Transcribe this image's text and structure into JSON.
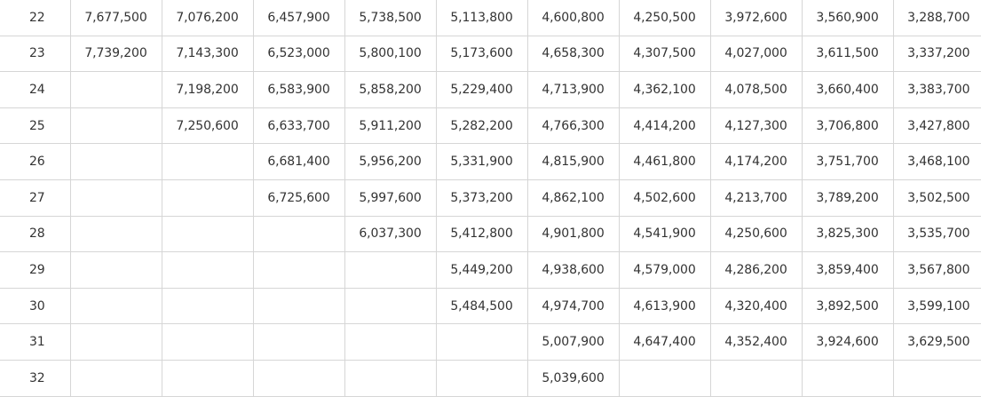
{
  "rows": [
    {
      "age": "22",
      "values": [
        "7,677,500",
        "7,076,200",
        "6,457,900",
        "5,738,500",
        "5,113,800",
        "4,600,800",
        "4,250,500",
        "3,972,600",
        "3,560,900",
        "3,288,700"
      ]
    },
    {
      "age": "23",
      "values": [
        "7,739,200",
        "7,143,300",
        "6,523,000",
        "5,800,100",
        "5,173,600",
        "4,658,300",
        "4,307,500",
        "4,027,000",
        "3,611,500",
        "3,337,200"
      ]
    },
    {
      "age": "24",
      "values": [
        "",
        "7,198,200",
        "6,583,900",
        "5,858,200",
        "5,229,400",
        "4,713,900",
        "4,362,100",
        "4,078,500",
        "3,660,400",
        "3,383,700"
      ]
    },
    {
      "age": "25",
      "values": [
        "",
        "7,250,600",
        "6,633,700",
        "5,911,200",
        "5,282,200",
        "4,766,300",
        "4,414,200",
        "4,127,300",
        "3,706,800",
        "3,427,800"
      ]
    },
    {
      "age": "26",
      "values": [
        "",
        "",
        "6,681,400",
        "5,956,200",
        "5,331,900",
        "4,815,900",
        "4,461,800",
        "4,174,200",
        "3,751,700",
        "3,468,100"
      ]
    },
    {
      "age": "27",
      "values": [
        "",
        "",
        "6,725,600",
        "5,997,600",
        "5,373,200",
        "4,862,100",
        "4,502,600",
        "4,213,700",
        "3,789,200",
        "3,502,500"
      ]
    },
    {
      "age": "28",
      "values": [
        "",
        "",
        "",
        "6,037,300",
        "5,412,800",
        "4,901,800",
        "4,541,900",
        "4,250,600",
        "3,825,300",
        "3,535,700"
      ]
    },
    {
      "age": "29",
      "values": [
        "",
        "",
        "",
        "",
        "5,449,200",
        "4,938,600",
        "4,579,000",
        "4,286,200",
        "3,859,400",
        "3,567,800"
      ]
    },
    {
      "age": "30",
      "values": [
        "",
        "",
        "",
        "",
        "5,484,500",
        "4,974,700",
        "4,613,900",
        "4,320,400",
        "3,892,500",
        "3,599,100"
      ]
    },
    {
      "age": "31",
      "values": [
        "",
        "",
        "",
        "",
        "",
        "5,007,900",
        "4,647,400",
        "4,352,400",
        "3,924,600",
        "3,629,500"
      ]
    },
    {
      "age": "32",
      "values": [
        "",
        "",
        "",
        "",
        "",
        "5,039,600",
        "",
        "",
        "",
        ""
      ]
    }
  ]
}
